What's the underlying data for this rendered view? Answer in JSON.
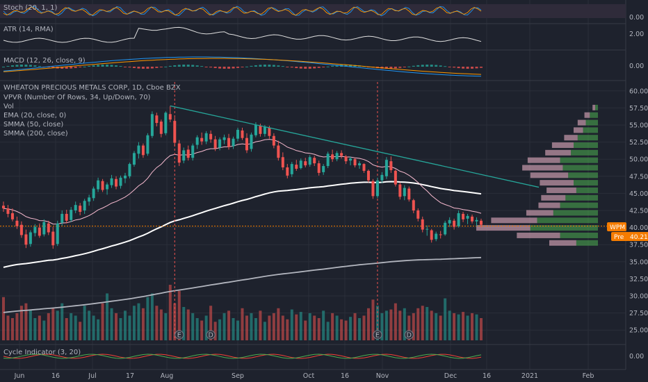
{
  "chart_data": {
    "type": "candlestick",
    "symbol_title": "WHEATON PRECIOUS METALS CORP, 1D, Cboe BZX",
    "overlay_labels": [
      "VPVR (Number Of Rows, 34, Up/Down, 70)",
      "Vol",
      "EMA (20, close, 0)",
      "SMMA (50, close)",
      "SMMA (200, close)"
    ],
    "price_axis_ticks": [
      "60.00",
      "57.50",
      "55.00",
      "52.50",
      "50.00",
      "47.50",
      "45.00",
      "42.50",
      "40.00",
      "37.50",
      "35.00",
      "32.50",
      "30.00",
      "27.50",
      "25.00"
    ],
    "price_range": [
      23.5,
      61.3
    ],
    "time_axis_ticks": [
      "Jun",
      "16",
      "Jul",
      "17",
      "Aug",
      "Sep",
      "Oct",
      "16",
      "Nov",
      "Dec",
      "16",
      "2021",
      "Feb"
    ],
    "ohlc": [
      [
        43.2,
        43.8,
        42.3,
        42.8
      ],
      [
        42.8,
        43.3,
        41.5,
        42.0
      ],
      [
        42.1,
        42.8,
        40.9,
        41.2
      ],
      [
        41.0,
        41.6,
        39.8,
        40.2
      ],
      [
        40.4,
        40.9,
        38.5,
        38.9
      ],
      [
        39.0,
        39.7,
        37.0,
        37.5
      ],
      [
        37.6,
        39.6,
        37.2,
        39.3
      ],
      [
        39.2,
        40.5,
        38.7,
        40.1
      ],
      [
        40.0,
        40.6,
        38.5,
        38.8
      ],
      [
        39.0,
        41.2,
        38.7,
        40.8
      ],
      [
        40.6,
        41.0,
        38.9,
        39.3
      ],
      [
        39.4,
        40.1,
        36.9,
        37.4
      ],
      [
        37.6,
        41.0,
        37.3,
        40.6
      ],
      [
        40.7,
        42.5,
        40.3,
        42.0
      ],
      [
        42.0,
        42.6,
        40.6,
        41.0
      ],
      [
        41.1,
        43.0,
        40.8,
        42.6
      ],
      [
        42.5,
        43.8,
        42.1,
        43.3
      ],
      [
        43.2,
        43.6,
        41.8,
        42.3
      ],
      [
        42.5,
        44.2,
        42.0,
        43.9
      ],
      [
        43.8,
        44.8,
        43.2,
        44.4
      ],
      [
        44.3,
        46.0,
        43.9,
        45.7
      ],
      [
        45.6,
        47.3,
        45.2,
        46.9
      ],
      [
        46.8,
        47.1,
        45.2,
        45.5
      ],
      [
        45.6,
        46.6,
        44.8,
        46.3
      ],
      [
        46.2,
        47.7,
        45.8,
        47.2
      ],
      [
        47.1,
        47.5,
        45.6,
        46.0
      ],
      [
        46.1,
        47.6,
        45.7,
        47.3
      ],
      [
        47.2,
        48.0,
        46.5,
        47.6
      ],
      [
        47.5,
        49.5,
        47.2,
        49.3
      ],
      [
        49.2,
        51.2,
        48.9,
        50.9
      ],
      [
        50.8,
        52.5,
        50.1,
        52.0
      ],
      [
        52.0,
        52.3,
        50.2,
        50.6
      ],
      [
        50.8,
        53.8,
        50.5,
        53.5
      ],
      [
        53.4,
        57.0,
        53.1,
        56.6
      ],
      [
        56.4,
        56.8,
        54.8,
        55.3
      ],
      [
        55.5,
        55.8,
        53.2,
        53.7
      ],
      [
        53.8,
        57.0,
        53.5,
        56.8
      ],
      [
        56.6,
        57.8,
        55.4,
        55.8
      ],
      [
        55.6,
        56.1,
        51.9,
        52.4
      ],
      [
        52.3,
        52.8,
        49.0,
        49.5
      ],
      [
        49.8,
        51.7,
        49.4,
        51.3
      ],
      [
        51.4,
        52.0,
        49.8,
        50.2
      ],
      [
        50.2,
        52.3,
        49.8,
        52.0
      ],
      [
        52.1,
        53.5,
        51.5,
        53.2
      ],
      [
        53.1,
        53.9,
        52.1,
        52.6
      ],
      [
        52.6,
        54.1,
        52.2,
        53.8
      ],
      [
        53.7,
        54.2,
        52.4,
        52.9
      ],
      [
        52.9,
        53.4,
        51.2,
        51.6
      ],
      [
        51.7,
        53.2,
        51.3,
        52.9
      ],
      [
        52.8,
        53.6,
        52.2,
        53.2
      ],
      [
        53.1,
        53.7,
        51.4,
        51.8
      ],
      [
        51.9,
        53.3,
        51.5,
        53.0
      ],
      [
        53.0,
        54.6,
        52.6,
        54.3
      ],
      [
        54.2,
        54.6,
        52.8,
        53.1
      ],
      [
        53.1,
        53.8,
        50.9,
        51.3
      ],
      [
        51.5,
        53.9,
        51.1,
        53.6
      ],
      [
        53.5,
        55.4,
        53.2,
        55.0
      ],
      [
        54.9,
        55.2,
        53.3,
        53.7
      ],
      [
        53.7,
        55.0,
        53.3,
        54.7
      ],
      [
        54.6,
        54.9,
        53.0,
        53.4
      ],
      [
        53.4,
        53.8,
        51.6,
        52.0
      ],
      [
        52.0,
        52.7,
        49.8,
        50.2
      ],
      [
        50.3,
        51.0,
        48.4,
        48.8
      ],
      [
        48.8,
        49.3,
        47.2,
        47.6
      ],
      [
        47.8,
        49.6,
        47.4,
        49.3
      ],
      [
        49.2,
        49.9,
        48.3,
        48.6
      ],
      [
        48.7,
        50.1,
        48.5,
        49.8
      ],
      [
        49.7,
        50.2,
        48.8,
        49.1
      ],
      [
        49.2,
        50.6,
        48.9,
        50.3
      ],
      [
        50.2,
        50.5,
        49.0,
        49.4
      ],
      [
        49.4,
        49.8,
        47.6,
        48.0
      ],
      [
        48.1,
        49.3,
        47.7,
        49.0
      ],
      [
        49.0,
        51.1,
        48.7,
        50.8
      ],
      [
        50.7,
        51.4,
        49.6,
        50.0
      ],
      [
        50.0,
        51.2,
        49.7,
        50.9
      ],
      [
        50.9,
        51.3,
        50.1,
        50.5
      ],
      [
        50.4,
        50.6,
        49.3,
        49.7
      ],
      [
        49.8,
        50.4,
        49.1,
        50.1
      ],
      [
        50.0,
        50.2,
        48.8,
        49.1
      ],
      [
        49.1,
        49.7,
        48.6,
        49.4
      ],
      [
        49.3,
        49.4,
        48.0,
        48.3
      ],
      [
        48.3,
        48.5,
        46.6,
        46.9
      ],
      [
        46.8,
        47.1,
        44.2,
        44.6
      ],
      [
        44.6,
        47.3,
        44.3,
        46.9
      ],
      [
        46.9,
        48.1,
        46.5,
        47.7
      ],
      [
        47.5,
        50.3,
        47.1,
        49.9
      ],
      [
        49.7,
        50.4,
        48.0,
        48.4
      ],
      [
        48.3,
        48.5,
        46.0,
        46.3
      ],
      [
        46.3,
        46.6,
        44.1,
        44.5
      ],
      [
        44.6,
        46.2,
        44.0,
        45.8
      ],
      [
        45.7,
        46.0,
        43.8,
        44.1
      ],
      [
        44.0,
        44.2,
        42.1,
        42.5
      ],
      [
        42.5,
        42.8,
        40.9,
        41.3
      ],
      [
        41.2,
        41.6,
        39.3,
        39.7
      ],
      [
        39.7,
        40.3,
        38.8,
        39.8
      ],
      [
        39.6,
        39.8,
        37.8,
        38.2
      ],
      [
        38.3,
        39.4,
        38.0,
        39.1
      ],
      [
        39.0,
        39.5,
        38.4,
        38.9
      ],
      [
        39.0,
        41.0,
        38.8,
        40.7
      ],
      [
        40.6,
        41.5,
        40.1,
        41.1
      ],
      [
        41.0,
        41.3,
        39.7,
        40.1
      ],
      [
        40.2,
        42.5,
        40.0,
        42.1
      ],
      [
        42.0,
        42.3,
        40.8,
        41.2
      ],
      [
        41.3,
        42.0,
        40.5,
        41.7
      ],
      [
        41.6,
        41.9,
        40.6,
        40.9
      ],
      [
        40.9,
        41.5,
        40.2,
        41.1
      ],
      [
        41.0,
        41.3,
        40.0,
        40.4
      ]
    ],
    "volume": [
      35,
      20,
      18,
      22,
      28,
      30,
      25,
      18,
      20,
      16,
      22,
      26,
      24,
      30,
      18,
      22,
      20,
      15,
      28,
      24,
      20,
      17,
      30,
      38,
      26,
      22,
      18,
      24,
      20,
      28,
      30,
      26,
      35,
      38,
      28,
      25,
      22,
      45,
      30,
      40,
      27,
      25,
      22,
      18,
      16,
      20,
      28,
      15,
      17,
      22,
      24,
      18,
      16,
      26,
      20,
      22,
      18,
      24,
      15,
      20,
      22,
      26,
      20,
      17,
      25,
      21,
      23,
      16,
      22,
      20,
      18,
      24,
      15,
      22,
      20,
      17,
      16,
      19,
      22,
      18,
      20,
      26,
      33,
      28,
      22,
      24,
      25,
      30,
      24,
      26,
      20,
      22,
      26,
      28,
      27,
      24,
      22,
      20,
      34,
      24,
      22,
      21,
      23,
      20,
      22,
      21,
      18
    ],
    "volume_up_color": "#26a69a",
    "volume_down_color": "#ef5350",
    "candle_up_color": "#26a69a",
    "candle_down_color": "#ef5350",
    "ema20_color": "#f8bbd0",
    "smma50_color": "#ffffff",
    "smma200_color": "#b2b5be",
    "trendline_color": "#26a69a",
    "current_price": 40.21,
    "price_tag_symbol": "WPM",
    "price_tag_pre": "Pre",
    "price_tag_pre_value": "40.21",
    "vpvr_profile": [
      {
        "price": 57.5,
        "up": 2,
        "down": 2
      },
      {
        "price": 56.4,
        "up": 4,
        "down": 6
      },
      {
        "price": 55.3,
        "up": 6,
        "down": 9
      },
      {
        "price": 54.2,
        "up": 7,
        "down": 11
      },
      {
        "price": 53.1,
        "up": 10,
        "down": 15
      },
      {
        "price": 52.0,
        "up": 16,
        "down": 18
      },
      {
        "price": 50.9,
        "up": 19,
        "down": 20
      },
      {
        "price": 49.8,
        "up": 24,
        "down": 28
      },
      {
        "price": 48.7,
        "up": 30,
        "down": 26
      },
      {
        "price": 47.6,
        "up": 28,
        "down": 22
      },
      {
        "price": 46.5,
        "up": 25,
        "down": 18
      },
      {
        "price": 45.4,
        "up": 22,
        "down": 16
      },
      {
        "price": 44.3,
        "up": 18,
        "down": 24
      },
      {
        "price": 43.2,
        "up": 16,
        "down": 28
      },
      {
        "price": 42.1,
        "up": 20,
        "down": 33
      },
      {
        "price": 41.0,
        "up": 34,
        "down": 45
      },
      {
        "price": 39.9,
        "up": 40,
        "down": 50
      },
      {
        "price": 38.8,
        "up": 32,
        "down": 28
      },
      {
        "price": 37.7,
        "up": 20,
        "down": 16
      }
    ],
    "event_markers": [
      "E",
      "D",
      "E",
      "D"
    ],
    "indicators": {
      "stoch": {
        "label": "Stoch (20, 1, 1)",
        "axis": "0.00"
      },
      "atr": {
        "label": "ATR (14, RMA)",
        "axis": "2.00"
      },
      "macd": {
        "label": "MACD (12, 26, close, 9)",
        "axis": "0.00"
      },
      "cycle": {
        "label": "Cycle Indicator (3, 20)",
        "axis": "0.00"
      }
    }
  },
  "ui": {
    "background": "#1e222d",
    "grid_color": "#2a2e39",
    "text_color": "#b2b5be"
  }
}
